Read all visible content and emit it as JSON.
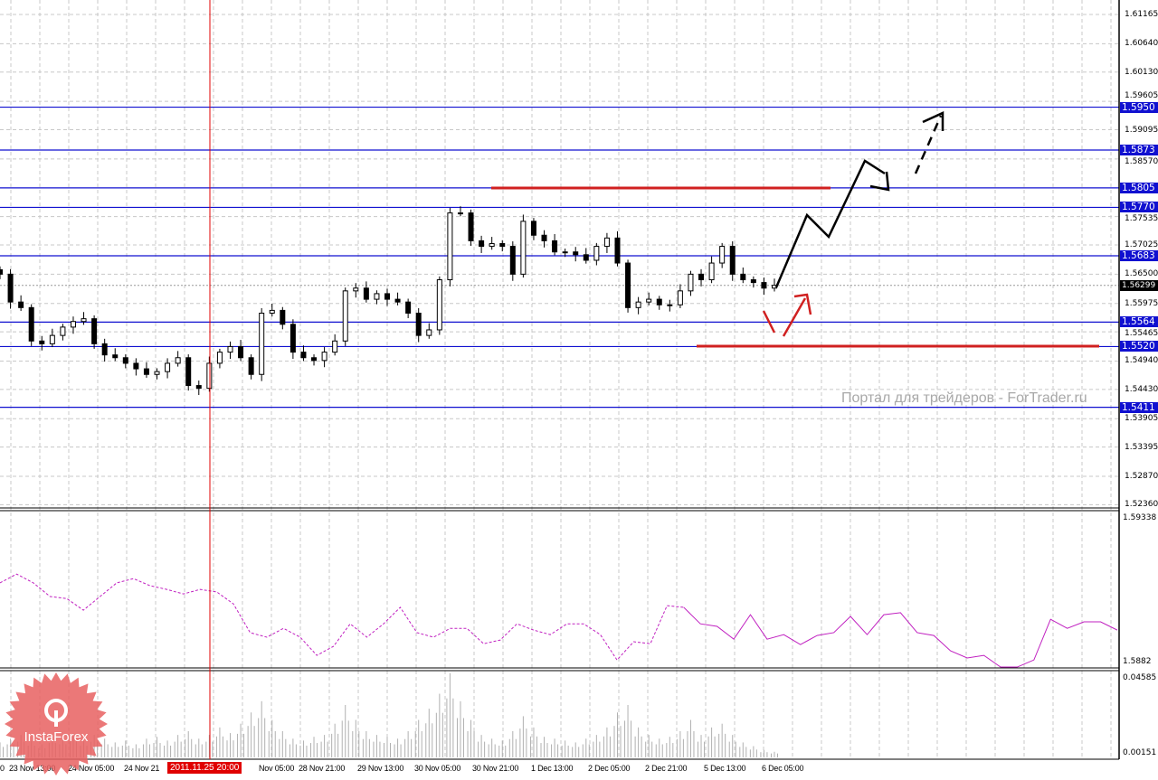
{
  "chart_data": {
    "type": "candlestick",
    "price_axis": {
      "ticks": [
        "1.61165",
        "1.60640",
        "1.60130",
        "1.59605",
        "1.59095",
        "1.58570",
        "1.57535",
        "1.57025",
        "1.56500",
        "1.55975",
        "1.55465",
        "1.54940",
        "1.54430",
        "1.53905",
        "1.53395",
        "1.52870",
        "1.52360"
      ],
      "range": [
        1.5236,
        1.61165
      ]
    },
    "levels": [
      "1.5950",
      "1.5873",
      "1.5805",
      "1.5770",
      "1.5683",
      "1.5564",
      "1.5520",
      "1.5411"
    ],
    "level_color": "#1010d0",
    "current_price": "1.56299",
    "resistance_line": 1.5805,
    "support_line": 1.552,
    "annotation_color": "#d02020",
    "closes": [
      1.565,
      1.56,
      1.559,
      1.553,
      1.5525,
      1.554,
      1.5555,
      1.5565,
      1.557,
      1.5525,
      1.5505,
      1.55,
      1.549,
      1.548,
      1.547,
      1.5475,
      1.549,
      1.55,
      1.545,
      1.5445,
      1.549,
      1.551,
      1.552,
      1.55,
      1.547,
      1.558,
      1.5585,
      1.556,
      1.551,
      1.55,
      1.5495,
      1.551,
      1.553,
      1.562,
      1.5625,
      1.5605,
      1.5615,
      1.5605,
      1.56,
      1.558,
      1.554,
      1.555,
      1.564,
      1.576,
      1.576,
      1.571,
      1.57,
      1.5705,
      1.57,
      1.565,
      1.5745,
      1.572,
      1.571,
      1.569,
      1.569,
      1.5685,
      1.5675,
      1.57,
      1.5715,
      1.567,
      1.559,
      1.56,
      1.5605,
      1.5595,
      1.5595,
      1.562,
      1.565,
      1.564,
      1.567,
      1.57,
      1.565,
      1.564,
      1.5635,
      1.5625,
      1.563
    ],
    "indicator": {
      "axis_top": "1.59338",
      "axis_bottom": "1.5882",
      "range": [
        1.5882,
        1.59338
      ],
      "color": "#c020c0",
      "values": [
        1.591,
        1.59131,
        1.591,
        1.59052,
        1.59045,
        1.59004,
        1.59052,
        1.591,
        1.59115,
        1.5909,
        1.59077,
        1.59061,
        1.59077,
        1.59068,
        1.59026,
        1.58925,
        1.58909,
        1.5894,
        1.58909,
        1.58845,
        1.58877,
        1.58956,
        1.58909,
        1.58956,
        1.59014,
        1.58925,
        1.58909,
        1.5894,
        1.5894,
        1.58886,
        1.58899,
        1.58956,
        1.58934,
        1.58918,
        1.58956,
        1.58956,
        1.58918,
        1.58829,
        1.58893,
        1.58886,
        1.5902,
        1.59014,
        1.58956,
        1.58947,
        1.58902,
        1.58988,
        1.58902,
        1.58918,
        1.58883,
        1.58915,
        1.58925,
        1.58982,
        1.58918,
        1.58988,
        1.58995,
        1.58925,
        1.58915,
        1.58861,
        1.58836,
        1.58845,
        1.58804,
        1.58804,
        1.58829,
        1.58972,
        1.5894,
        1.58963,
        1.58963,
        1.58934
      ]
    },
    "volume": {
      "axis_top": "0.04585",
      "axis_bottom": "0.00151",
      "range": [
        0,
        0.04585
      ],
      "values": [
        0.008,
        0.01,
        0.012,
        0.009,
        0.007,
        0.011,
        0.01,
        0.013,
        0.009,
        0.012,
        0.01,
        0.008,
        0.009,
        0.007,
        0.01,
        0.011,
        0.009,
        0.012,
        0.014,
        0.01,
        0.012,
        0.016,
        0.013,
        0.018,
        0.024,
        0.03,
        0.02,
        0.014,
        0.01,
        0.009,
        0.011,
        0.012,
        0.018,
        0.028,
        0.02,
        0.014,
        0.012,
        0.011,
        0.01,
        0.014,
        0.02,
        0.026,
        0.034,
        0.045,
        0.03,
        0.02,
        0.012,
        0.01,
        0.009,
        0.014,
        0.022,
        0.016,
        0.011,
        0.01,
        0.009,
        0.008,
        0.01,
        0.012,
        0.016,
        0.024,
        0.028,
        0.016,
        0.012,
        0.01,
        0.011,
        0.014,
        0.02,
        0.012,
        0.016,
        0.018,
        0.012,
        0.008,
        0.006,
        0.004,
        0.003
      ]
    },
    "time_labels": [
      "0",
      "23 Nov 13:00",
      "24 Nov 05:00",
      "24 Nov 21",
      "Nov 05:00",
      "28 Nov 21:00",
      "29 Nov 13:00",
      "30 Nov 05:00",
      "30 Nov 21:00",
      "1 Dec 13:00",
      "2 Dec 05:00",
      "2 Dec 21:00",
      "5 Dec 13:00",
      "6 Dec 05:00"
    ],
    "crosshair_time": "2011.11.25 20:00",
    "crosshair_color": "#e00000"
  },
  "watermark": "Портал для трейдеров - ForTrader.ru",
  "logo": {
    "text": "InstaForex",
    "color": "#e86060"
  }
}
